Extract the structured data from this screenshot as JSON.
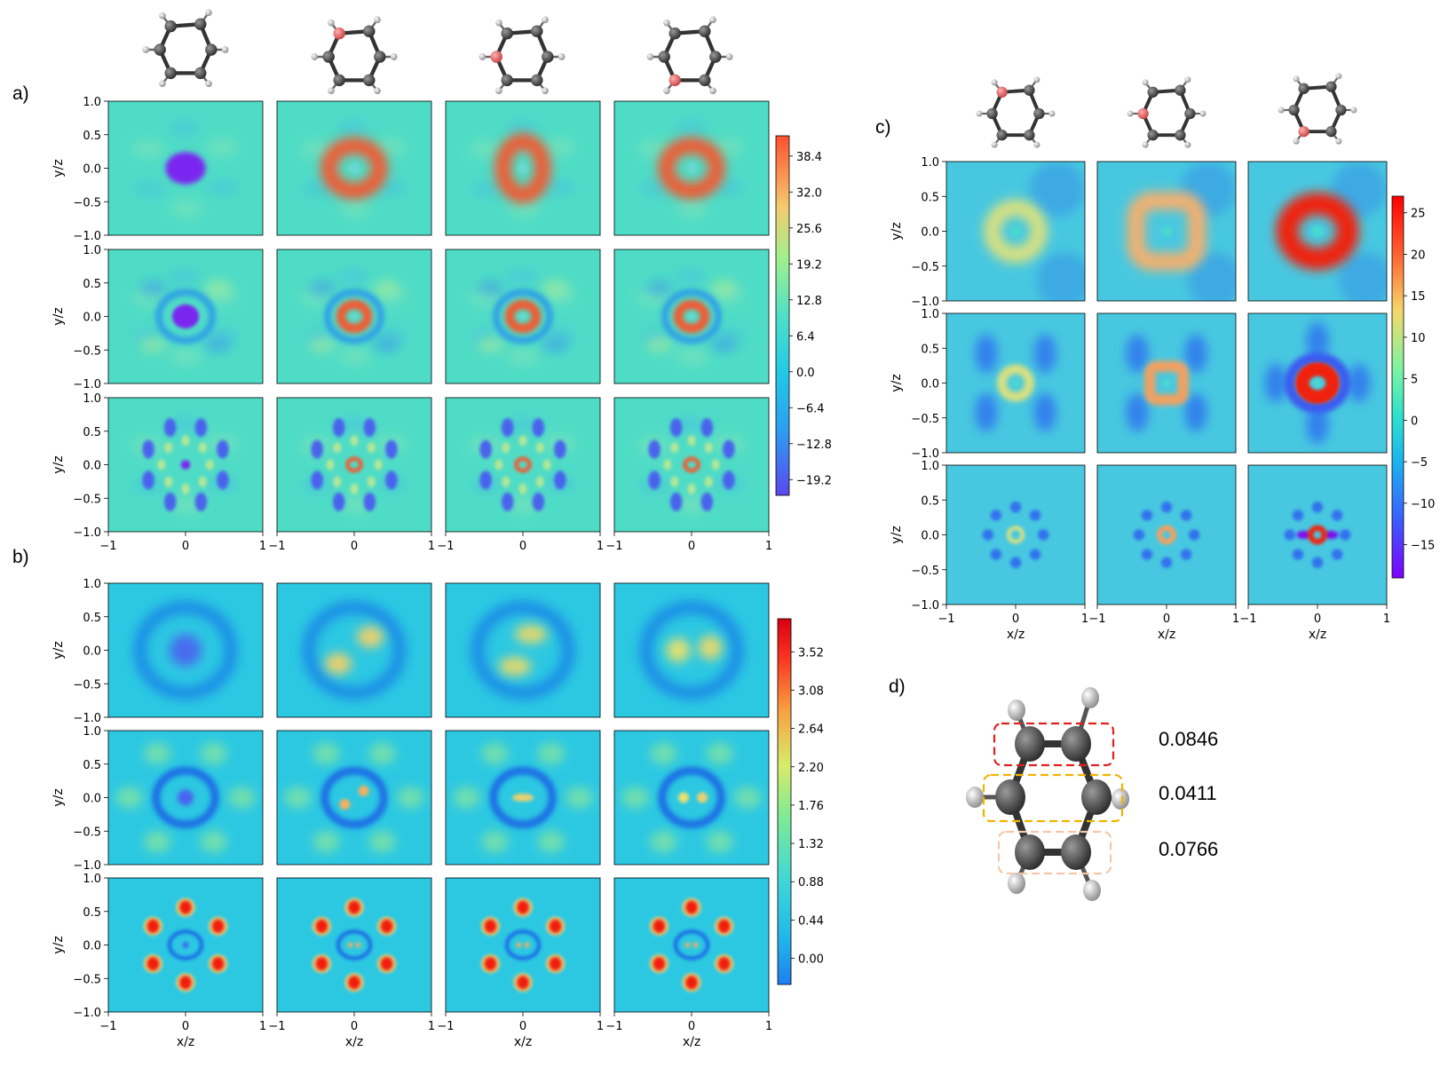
{
  "panels": {
    "a": {
      "label": "a)"
    },
    "b": {
      "label": "b)"
    },
    "c": {
      "label": "c)"
    },
    "d": {
      "label": "d)"
    }
  },
  "axes": {
    "xlabel": "x/z",
    "ylabel": "y/z",
    "x_ticks": [
      "−1",
      "0",
      "1"
    ],
    "y_ticks": [
      "1.0",
      "0.5",
      "0.0",
      "−0.5",
      "−1.0"
    ]
  },
  "chart_data": [
    {
      "type": "heatmap",
      "panel": "a",
      "rows": 3,
      "columns": 4,
      "xlabel": "x/z",
      "ylabel": "y/z",
      "xlim": [
        -1,
        1
      ],
      "ylim": [
        -1,
        1
      ],
      "colorbar_ticks": [
        "38.4",
        "32.0",
        "25.6",
        "19.2",
        "12.8",
        "6.4",
        "0.0",
        "−6.4",
        "−12.8",
        "−19.2"
      ],
      "colorbar_range": [
        -22,
        42
      ]
    },
    {
      "type": "heatmap",
      "panel": "b",
      "rows": 3,
      "columns": 4,
      "xlabel": "x/z",
      "ylabel": "y/z",
      "xlim": [
        -1,
        1
      ],
      "ylim": [
        -1,
        1
      ],
      "colorbar_ticks": [
        "3.52",
        "3.08",
        "2.64",
        "2.20",
        "1.76",
        "1.32",
        "0.88",
        "0.44",
        "0.00"
      ],
      "colorbar_range": [
        -0.3,
        3.9
      ]
    },
    {
      "type": "heatmap",
      "panel": "c",
      "rows": 3,
      "columns": 3,
      "xlabel": "x/z",
      "ylabel": "y/z",
      "xlim": [
        -1,
        1
      ],
      "ylim": [
        -1,
        1
      ],
      "colorbar_ticks": [
        "25",
        "20",
        "15",
        "10",
        "5",
        "0",
        "−5",
        "−10",
        "−15"
      ],
      "colorbar_range": [
        -19,
        27
      ]
    }
  ],
  "panel_d": {
    "values": [
      "0.0846",
      "0.0411",
      "0.0766"
    ],
    "box_colors": [
      "#e02020",
      "#f0b400",
      "#f5c7a8"
    ]
  },
  "colors": {
    "background_field": "#4fd9c4",
    "oxygen_atom": "#e06060",
    "carbon_atom": "#3c3c3c",
    "hydrogen_atom": "#c8c8c8"
  }
}
